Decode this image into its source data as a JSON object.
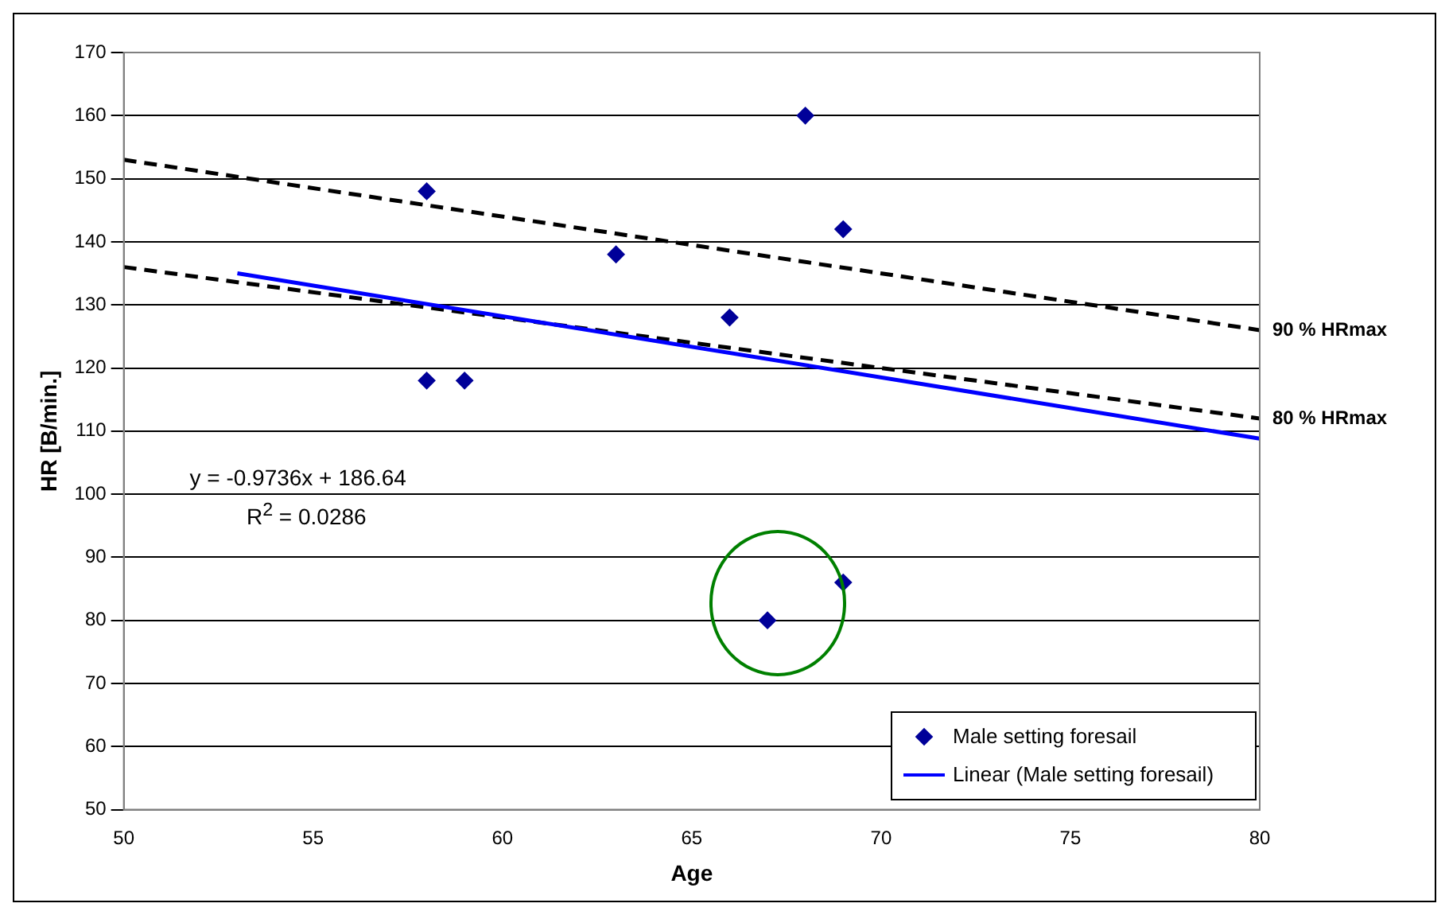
{
  "chart_data": {
    "type": "scatter",
    "xlabel": "Age",
    "ylabel": "HR [B/min.]",
    "xlim": [
      50,
      80
    ],
    "xticks": [
      50,
      55,
      60,
      65,
      70,
      75,
      80
    ],
    "ylim": [
      50,
      170
    ],
    "yticks": [
      50,
      60,
      70,
      80,
      90,
      100,
      110,
      120,
      130,
      140,
      150,
      160,
      170
    ],
    "grid": "y",
    "legend": "bottom right",
    "annotations": [
      "y = -0.9736x + 186.64",
      "R$^{2}$ = 0.0286"
    ],
    "series": [
      {
        "name": "Male setting foresail",
        "type": "scatter",
        "marker": "diamond",
        "color": "#000099",
        "x": [
          58,
          58,
          59,
          63,
          66,
          68,
          69,
          67,
          69
        ],
        "values": [
          148,
          118,
          118,
          138,
          128,
          160,
          142,
          80,
          86
        ]
      },
      {
        "name": "Linear (Male setting foresail)",
        "type": "line",
        "marker": "none",
        "line_style": "solid",
        "color": "#0000ff",
        "x": [
          53,
          80
        ],
        "values": [
          135,
          108.8
        ]
      },
      {
        "name": "90 % HRmax",
        "type": "line",
        "marker": "none",
        "line_style": "dashed",
        "color": "#000000",
        "x": [
          50,
          80
        ],
        "values": [
          153,
          126
        ]
      },
      {
        "name": "80 % HRmax",
        "type": "line",
        "marker": "none",
        "line_style": "dashed",
        "color": "#000000",
        "x": [
          50,
          80
        ],
        "values": [
          136,
          112
        ]
      }
    ]
  }
}
